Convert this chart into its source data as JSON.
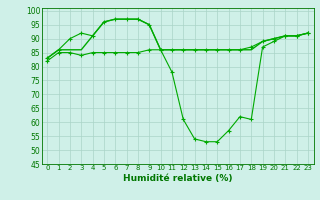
{
  "xlabel": "Humidité relative (%)",
  "background_color": "#cff0e8",
  "grid_color": "#aad4c8",
  "line_color": "#00aa00",
  "tick_color": "#007700",
  "ylim": [
    45,
    101
  ],
  "xlim": [
    -0.5,
    23.5
  ],
  "yticks": [
    45,
    50,
    55,
    60,
    65,
    70,
    75,
    80,
    85,
    90,
    95,
    100
  ],
  "xticks": [
    0,
    1,
    2,
    3,
    4,
    5,
    6,
    7,
    8,
    9,
    10,
    11,
    12,
    13,
    14,
    15,
    16,
    17,
    18,
    19,
    20,
    21,
    22,
    23
  ],
  "xtick_labels": [
    "0",
    "1",
    "2",
    "3",
    "4",
    "5",
    "6",
    "7",
    "8",
    "9",
    "10",
    "11",
    "12",
    "13",
    "14",
    "15",
    "16",
    "17",
    "18",
    "19",
    "20",
    "21",
    "22",
    "23"
  ],
  "series": [
    {
      "x": [
        0,
        1,
        2,
        3,
        4,
        5,
        6,
        7,
        8,
        9,
        10,
        11,
        12,
        13,
        14,
        15,
        16,
        17,
        18,
        19,
        20,
        21,
        22,
        23
      ],
      "y": [
        82,
        85,
        85,
        84,
        85,
        85,
        85,
        85,
        85,
        86,
        86,
        86,
        86,
        86,
        86,
        86,
        86,
        86,
        87,
        89,
        90,
        91,
        91,
        92
      ],
      "marker": true,
      "lw": 0.8
    },
    {
      "x": [
        0,
        1,
        2,
        3,
        4,
        5,
        6,
        7,
        8,
        9,
        10,
        11,
        12,
        13,
        14,
        15,
        16,
        17,
        18,
        19,
        20,
        21,
        22,
        23
      ],
      "y": [
        83,
        86,
        90,
        92,
        91,
        96,
        97,
        97,
        97,
        95,
        86,
        78,
        61,
        54,
        53,
        53,
        57,
        62,
        61,
        87,
        89,
        91,
        91,
        92
      ],
      "marker": true,
      "lw": 0.8
    },
    {
      "x": [
        0,
        1,
        2,
        3,
        4,
        5,
        6,
        7,
        8,
        9,
        10,
        11,
        12,
        13,
        14,
        15,
        16,
        17,
        18,
        19,
        20,
        21,
        22,
        23
      ],
      "y": [
        83,
        86,
        86,
        86,
        91,
        96,
        97,
        97,
        97,
        95,
        86,
        86,
        86,
        86,
        86,
        86,
        86,
        86,
        86,
        89,
        90,
        91,
        91,
        92
      ],
      "marker": false,
      "lw": 1.0
    }
  ]
}
